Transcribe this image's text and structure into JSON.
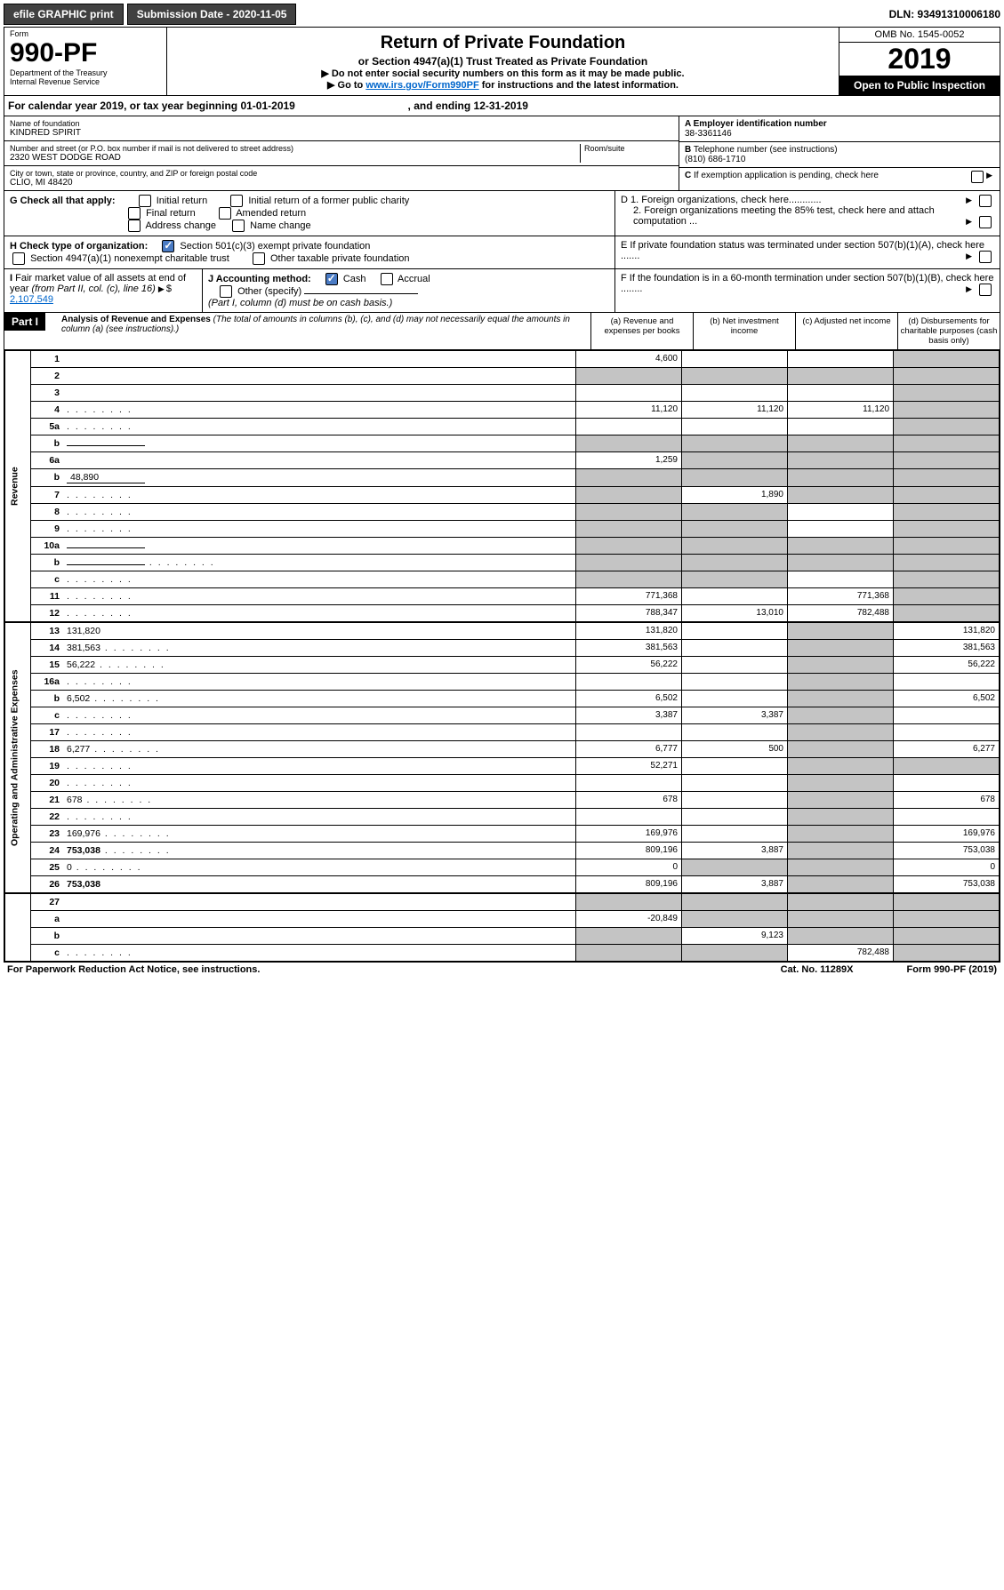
{
  "header": {
    "efile": "efile GRAPHIC print",
    "submission": "Submission Date - 2020-11-05",
    "dln": "DLN: 93491310006180"
  },
  "form": {
    "label": "Form",
    "number": "990-PF",
    "dept": "Department of the Treasury",
    "irs": "Internal Revenue Service",
    "title": "Return of Private Foundation",
    "subtitle": "or Section 4947(a)(1) Trust Treated as Private Foundation",
    "instr1": "▶ Do not enter social security numbers on this form as it may be made public.",
    "instr2_pre": "▶ Go to ",
    "instr2_link": "www.irs.gov/Form990PF",
    "instr2_post": " for instructions and the latest information.",
    "omb": "OMB No. 1545-0052",
    "year": "2019",
    "open": "Open to Public Inspection"
  },
  "calendar": {
    "text_pre": "For calendar year 2019, or tax year beginning ",
    "begin": "01-01-2019",
    "mid": " , and ending ",
    "end": "12-31-2019"
  },
  "entity": {
    "name_label": "Name of foundation",
    "name": "KINDRED SPIRIT",
    "addr_label": "Number and street (or P.O. box number if mail is not delivered to street address)",
    "room_label": "Room/suite",
    "addr": "2320 WEST DODGE ROAD",
    "city_label": "City or town, state or province, country, and ZIP or foreign postal code",
    "city": "CLIO, MI  48420",
    "a_label": "A Employer identification number",
    "ein": "38-3361146",
    "b_label": "B Telephone number (see instructions)",
    "phone": "(810) 686-1710",
    "c_label": "C If exemption application is pending, check here",
    "d1": "D 1. Foreign organizations, check here............",
    "d2": "2. Foreign organizations meeting the 85% test, check here and attach computation ...",
    "e": "E   If private foundation status was terminated under section 507(b)(1)(A), check here .......",
    "f": "F   If the foundation is in a 60-month termination under section 507(b)(1)(B), check here ........"
  },
  "g": {
    "label": "G Check all that apply:",
    "opts": [
      "Initial return",
      "Initial return of a former public charity",
      "Final return",
      "Amended return",
      "Address change",
      "Name change"
    ]
  },
  "h": {
    "label": "H Check type of organization:",
    "opt1": "Section 501(c)(3) exempt private foundation",
    "opt2": "Section 4947(a)(1) nonexempt charitable trust",
    "opt3": "Other taxable private foundation"
  },
  "i": {
    "label": "I Fair market value of all assets at end of year (from Part II, col. (c), line 16)",
    "value": "2,107,549"
  },
  "j": {
    "label": "J Accounting method:",
    "cash": "Cash",
    "accrual": "Accrual",
    "other": "Other (specify)",
    "note": "(Part I, column (d) must be on cash basis.)"
  },
  "part1": {
    "label": "Part I",
    "title": "Analysis of Revenue and Expenses",
    "note": "(The total of amounts in columns (b), (c), and (d) may not necessarily equal the amounts in column (a) (see instructions).)",
    "cols": {
      "a": "(a)    Revenue and expenses per books",
      "b": "(b)   Net investment income",
      "c": "(c)   Adjusted net income",
      "d": "(d)   Disbursements for charitable purposes (cash basis only)"
    }
  },
  "sections": {
    "revenue": "Revenue",
    "opex": "Operating and Administrative Expenses"
  },
  "rows": [
    {
      "n": "1",
      "d": "",
      "a": "4,600",
      "b": "",
      "c": "",
      "ds": true
    },
    {
      "n": "2",
      "d": "",
      "a": "",
      "b": "",
      "c": "",
      "as": true,
      "bs": true,
      "cs": true,
      "ds": true,
      "bold_not": true
    },
    {
      "n": "3",
      "d": "",
      "a": "",
      "b": "",
      "c": "",
      "ds": true
    },
    {
      "n": "4",
      "d": "",
      "a": "11,120",
      "b": "11,120",
      "c": "11,120",
      "ds": true,
      "dots": true
    },
    {
      "n": "5a",
      "d": "",
      "a": "",
      "b": "",
      "c": "",
      "ds": true,
      "dots": true
    },
    {
      "n": "b",
      "d": "",
      "a": "",
      "b": "",
      "c": "",
      "as": true,
      "bs": true,
      "cs": true,
      "ds": true,
      "inline": ""
    },
    {
      "n": "6a",
      "d": "",
      "a": "1,259",
      "b": "",
      "c": "",
      "bs": true,
      "cs": true,
      "ds": true
    },
    {
      "n": "b",
      "d": "",
      "a": "",
      "b": "",
      "c": "",
      "as": true,
      "bs": true,
      "cs": true,
      "ds": true,
      "inline": "48,890"
    },
    {
      "n": "7",
      "d": "",
      "a": "",
      "b": "1,890",
      "c": "",
      "as": true,
      "cs": true,
      "ds": true,
      "dots": true
    },
    {
      "n": "8",
      "d": "",
      "a": "",
      "b": "",
      "c": "",
      "as": true,
      "bs": true,
      "ds": true,
      "dots": true
    },
    {
      "n": "9",
      "d": "",
      "a": "",
      "b": "",
      "c": "",
      "as": true,
      "bs": true,
      "ds": true,
      "dots": true
    },
    {
      "n": "10a",
      "d": "",
      "a": "",
      "b": "",
      "c": "",
      "as": true,
      "bs": true,
      "cs": true,
      "ds": true,
      "inline": ""
    },
    {
      "n": "b",
      "d": "",
      "a": "",
      "b": "",
      "c": "",
      "as": true,
      "bs": true,
      "cs": true,
      "ds": true,
      "inline": "",
      "dots": true
    },
    {
      "n": "c",
      "d": "",
      "a": "",
      "b": "",
      "c": "",
      "as": true,
      "bs": true,
      "ds": true,
      "dots": true
    },
    {
      "n": "11",
      "d": "",
      "a": "771,368",
      "b": "",
      "c": "771,368",
      "ds": true,
      "dots": true
    },
    {
      "n": "12",
      "d": "",
      "a": "788,347",
      "b": "13,010",
      "c": "782,488",
      "ds": true,
      "bold": true,
      "dots": true
    }
  ],
  "exprows": [
    {
      "n": "13",
      "d": "131,820",
      "a": "131,820",
      "b": "",
      "c": "",
      "cs": true
    },
    {
      "n": "14",
      "d": "381,563",
      "a": "381,563",
      "b": "",
      "c": "",
      "cs": true,
      "dots": true
    },
    {
      "n": "15",
      "d": "56,222",
      "a": "56,222",
      "b": "",
      "c": "",
      "cs": true,
      "dots": true
    },
    {
      "n": "16a",
      "d": "",
      "a": "",
      "b": "",
      "c": "",
      "cs": true,
      "dots": true
    },
    {
      "n": "b",
      "d": "6,502",
      "a": "6,502",
      "b": "",
      "c": "",
      "cs": true,
      "dots": true
    },
    {
      "n": "c",
      "d": "",
      "a": "3,387",
      "b": "3,387",
      "c": "",
      "cs": true,
      "dots": true
    },
    {
      "n": "17",
      "d": "",
      "a": "",
      "b": "",
      "c": "",
      "cs": true,
      "dots": true
    },
    {
      "n": "18",
      "d": "6,277",
      "a": "6,777",
      "b": "500",
      "c": "",
      "cs": true,
      "dots": true
    },
    {
      "n": "19",
      "d": "",
      "a": "52,271",
      "b": "",
      "c": "",
      "cs": true,
      "ds": true,
      "dots": true
    },
    {
      "n": "20",
      "d": "",
      "a": "",
      "b": "",
      "c": "",
      "cs": true,
      "dots": true
    },
    {
      "n": "21",
      "d": "678",
      "a": "678",
      "b": "",
      "c": "",
      "cs": true,
      "dots": true
    },
    {
      "n": "22",
      "d": "",
      "a": "",
      "b": "",
      "c": "",
      "cs": true,
      "dots": true
    },
    {
      "n": "23",
      "d": "169,976",
      "a": "169,976",
      "b": "",
      "c": "",
      "cs": true,
      "dots": true
    },
    {
      "n": "24",
      "d": "753,038",
      "a": "809,196",
      "b": "3,887",
      "c": "",
      "cs": true,
      "bold": true,
      "dots": true
    },
    {
      "n": "25",
      "d": "0",
      "a": "0",
      "b": "",
      "c": "",
      "bs": true,
      "cs": true,
      "dots": true
    },
    {
      "n": "26",
      "d": "753,038",
      "a": "809,196",
      "b": "3,887",
      "c": "",
      "cs": true,
      "bold": true
    }
  ],
  "netrows": [
    {
      "n": "27",
      "d": "",
      "a": "",
      "b": "",
      "c": "",
      "as": true,
      "bs": true,
      "cs": true,
      "ds": true
    },
    {
      "n": "a",
      "d": "",
      "a": "-20,849",
      "b": "",
      "c": "",
      "bs": true,
      "cs": true,
      "ds": true,
      "bold": true
    },
    {
      "n": "b",
      "d": "",
      "a": "",
      "b": "9,123",
      "c": "",
      "as": true,
      "cs": true,
      "ds": true,
      "bold": true
    },
    {
      "n": "c",
      "d": "",
      "a": "",
      "b": "",
      "c": "782,488",
      "as": true,
      "bs": true,
      "ds": true,
      "bold": true,
      "dots": true
    }
  ],
  "footer": {
    "left": "For Paperwork Reduction Act Notice, see instructions.",
    "mid": "Cat. No. 11289X",
    "right": "Form 990-PF (2019)"
  }
}
